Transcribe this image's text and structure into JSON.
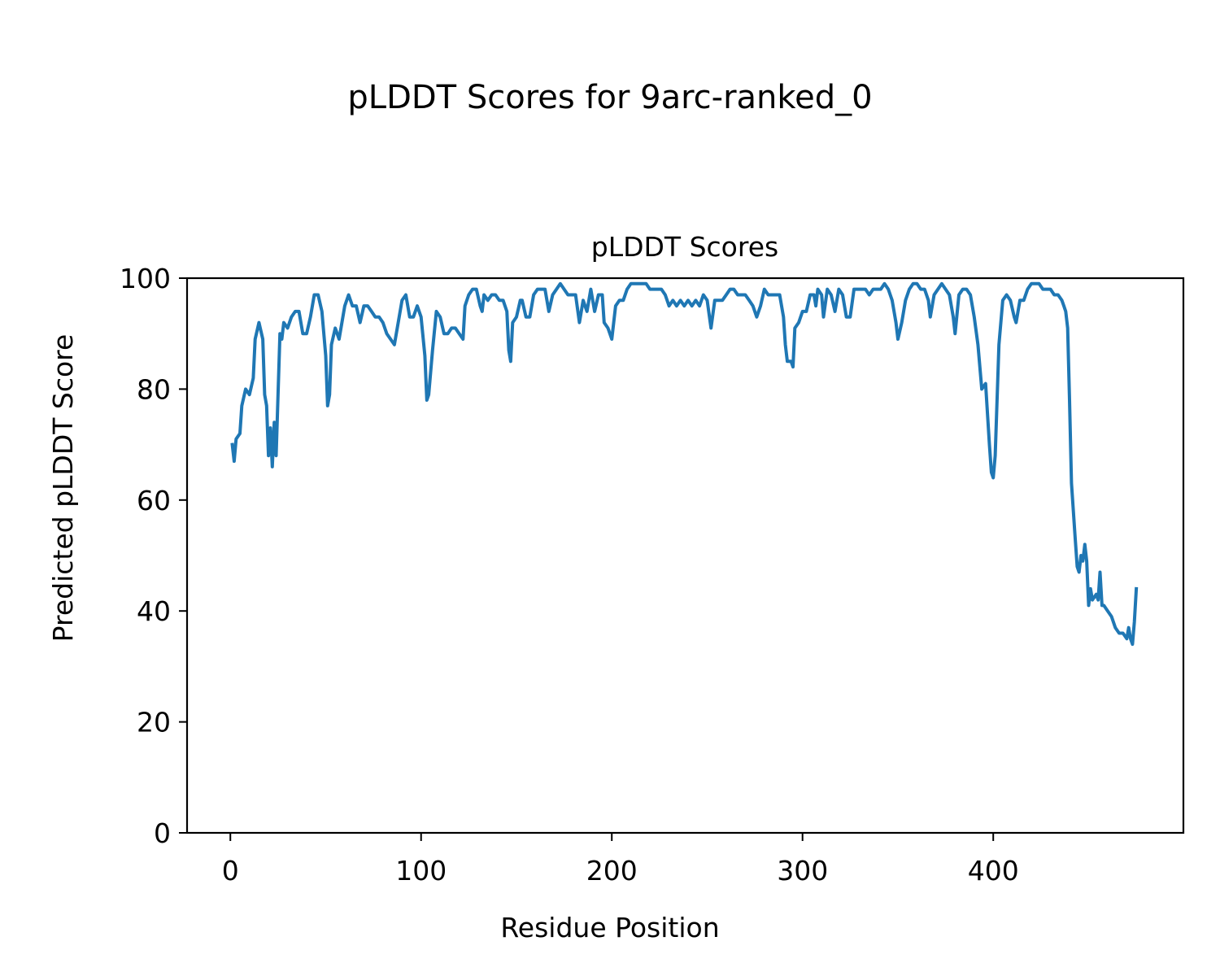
{
  "figure": {
    "suptitle": "pLDDT Scores for 9arc-ranked_0"
  },
  "chart_data": {
    "type": "line",
    "title": "pLDDT Scores",
    "xlabel": "Residue Position",
    "ylabel": "Predicted pLDDT Score",
    "xlim": [
      -22.7,
      499.7
    ],
    "ylim": [
      0,
      100
    ],
    "xticks": [
      0,
      100,
      200,
      300,
      400
    ],
    "yticks": [
      0,
      20,
      40,
      60,
      80,
      100
    ],
    "grid": false,
    "line_color": "#1f77b4",
    "anchors": [
      [
        1,
        70
      ],
      [
        2,
        67
      ],
      [
        3,
        71
      ],
      [
        5,
        72
      ],
      [
        6,
        77
      ],
      [
        8,
        80
      ],
      [
        10,
        79
      ],
      [
        12,
        82
      ],
      [
        13,
        89
      ],
      [
        15,
        92
      ],
      [
        17,
        89
      ],
      [
        18,
        79
      ],
      [
        19,
        77
      ],
      [
        20,
        68
      ],
      [
        21,
        73
      ],
      [
        22,
        66
      ],
      [
        23,
        74
      ],
      [
        24,
        68
      ],
      [
        26,
        90
      ],
      [
        27,
        89
      ],
      [
        28,
        92
      ],
      [
        30,
        91
      ],
      [
        32,
        93
      ],
      [
        34,
        94
      ],
      [
        36,
        94
      ],
      [
        38,
        90
      ],
      [
        40,
        90
      ],
      [
        42,
        93
      ],
      [
        44,
        97
      ],
      [
        46,
        97
      ],
      [
        48,
        94
      ],
      [
        50,
        86
      ],
      [
        51,
        77
      ],
      [
        52,
        79
      ],
      [
        53,
        88
      ],
      [
        55,
        91
      ],
      [
        57,
        89
      ],
      [
        60,
        95
      ],
      [
        62,
        97
      ],
      [
        64,
        95
      ],
      [
        66,
        95
      ],
      [
        68,
        92
      ],
      [
        70,
        95
      ],
      [
        72,
        95
      ],
      [
        74,
        94
      ],
      [
        76,
        93
      ],
      [
        78,
        93
      ],
      [
        80,
        92
      ],
      [
        82,
        90
      ],
      [
        84,
        89
      ],
      [
        86,
        88
      ],
      [
        88,
        92
      ],
      [
        90,
        96
      ],
      [
        92,
        97
      ],
      [
        94,
        93
      ],
      [
        96,
        93
      ],
      [
        98,
        95
      ],
      [
        100,
        93
      ],
      [
        102,
        86
      ],
      [
        103,
        78
      ],
      [
        104,
        79
      ],
      [
        106,
        87
      ],
      [
        108,
        94
      ],
      [
        110,
        93
      ],
      [
        112,
        90
      ],
      [
        114,
        90
      ],
      [
        116,
        91
      ],
      [
        118,
        91
      ],
      [
        120,
        90
      ],
      [
        122,
        89
      ],
      [
        123,
        95
      ],
      [
        125,
        97
      ],
      [
        127,
        98
      ],
      [
        129,
        98
      ],
      [
        131,
        95
      ],
      [
        132,
        94
      ],
      [
        133,
        97
      ],
      [
        135,
        96
      ],
      [
        137,
        97
      ],
      [
        139,
        97
      ],
      [
        141,
        96
      ],
      [
        143,
        96
      ],
      [
        145,
        94
      ],
      [
        146,
        87
      ],
      [
        147,
        85
      ],
      [
        148,
        92
      ],
      [
        150,
        93
      ],
      [
        152,
        96
      ],
      [
        153,
        96
      ],
      [
        155,
        93
      ],
      [
        157,
        93
      ],
      [
        159,
        97
      ],
      [
        161,
        98
      ],
      [
        163,
        98
      ],
      [
        165,
        98
      ],
      [
        167,
        94
      ],
      [
        169,
        97
      ],
      [
        171,
        98
      ],
      [
        173,
        99
      ],
      [
        175,
        98
      ],
      [
        177,
        97
      ],
      [
        179,
        97
      ],
      [
        181,
        97
      ],
      [
        183,
        92
      ],
      [
        185,
        96
      ],
      [
        187,
        94
      ],
      [
        189,
        98
      ],
      [
        191,
        94
      ],
      [
        193,
        97
      ],
      [
        195,
        97
      ],
      [
        196,
        92
      ],
      [
        198,
        91
      ],
      [
        200,
        89
      ],
      [
        202,
        95
      ],
      [
        204,
        96
      ],
      [
        206,
        96
      ],
      [
        208,
        98
      ],
      [
        210,
        99
      ],
      [
        212,
        99
      ],
      [
        214,
        99
      ],
      [
        216,
        99
      ],
      [
        218,
        99
      ],
      [
        220,
        98
      ],
      [
        222,
        98
      ],
      [
        224,
        98
      ],
      [
        226,
        98
      ],
      [
        228,
        97
      ],
      [
        230,
        95
      ],
      [
        232,
        96
      ],
      [
        234,
        95
      ],
      [
        236,
        96
      ],
      [
        238,
        95
      ],
      [
        240,
        96
      ],
      [
        242,
        95
      ],
      [
        244,
        96
      ],
      [
        246,
        95
      ],
      [
        248,
        97
      ],
      [
        250,
        96
      ],
      [
        252,
        91
      ],
      [
        254,
        96
      ],
      [
        256,
        96
      ],
      [
        258,
        96
      ],
      [
        260,
        97
      ],
      [
        262,
        98
      ],
      [
        264,
        98
      ],
      [
        266,
        97
      ],
      [
        268,
        97
      ],
      [
        270,
        97
      ],
      [
        272,
        96
      ],
      [
        274,
        95
      ],
      [
        276,
        93
      ],
      [
        278,
        95
      ],
      [
        280,
        98
      ],
      [
        282,
        97
      ],
      [
        284,
        97
      ],
      [
        286,
        97
      ],
      [
        288,
        97
      ],
      [
        290,
        93
      ],
      [
        291,
        88
      ],
      [
        292,
        85
      ],
      [
        294,
        85
      ],
      [
        295,
        84
      ],
      [
        296,
        91
      ],
      [
        298,
        92
      ],
      [
        300,
        94
      ],
      [
        302,
        94
      ],
      [
        304,
        97
      ],
      [
        306,
        97
      ],
      [
        307,
        95
      ],
      [
        308,
        98
      ],
      [
        310,
        97
      ],
      [
        311,
        93
      ],
      [
        313,
        98
      ],
      [
        315,
        97
      ],
      [
        317,
        94
      ],
      [
        319,
        98
      ],
      [
        321,
        97
      ],
      [
        323,
        93
      ],
      [
        325,
        93
      ],
      [
        327,
        98
      ],
      [
        329,
        98
      ],
      [
        331,
        98
      ],
      [
        333,
        98
      ],
      [
        335,
        97
      ],
      [
        337,
        98
      ],
      [
        339,
        98
      ],
      [
        341,
        98
      ],
      [
        343,
        99
      ],
      [
        345,
        98
      ],
      [
        347,
        96
      ],
      [
        349,
        92
      ],
      [
        350,
        89
      ],
      [
        352,
        92
      ],
      [
        354,
        96
      ],
      [
        356,
        98
      ],
      [
        358,
        99
      ],
      [
        360,
        99
      ],
      [
        362,
        98
      ],
      [
        364,
        98
      ],
      [
        366,
        96
      ],
      [
        367,
        93
      ],
      [
        369,
        97
      ],
      [
        371,
        98
      ],
      [
        373,
        99
      ],
      [
        375,
        98
      ],
      [
        377,
        97
      ],
      [
        379,
        93
      ],
      [
        380,
        90
      ],
      [
        382,
        97
      ],
      [
        384,
        98
      ],
      [
        386,
        98
      ],
      [
        388,
        97
      ],
      [
        390,
        93
      ],
      [
        392,
        88
      ],
      [
        394,
        80
      ],
      [
        396,
        81
      ],
      [
        398,
        70
      ],
      [
        399,
        65
      ],
      [
        400,
        64
      ],
      [
        401,
        68
      ],
      [
        403,
        88
      ],
      [
        405,
        96
      ],
      [
        407,
        97
      ],
      [
        409,
        96
      ],
      [
        411,
        93
      ],
      [
        412,
        92
      ],
      [
        414,
        96
      ],
      [
        416,
        96
      ],
      [
        418,
        98
      ],
      [
        420,
        99
      ],
      [
        422,
        99
      ],
      [
        424,
        99
      ],
      [
        426,
        98
      ],
      [
        428,
        98
      ],
      [
        430,
        98
      ],
      [
        432,
        97
      ],
      [
        434,
        97
      ],
      [
        436,
        96
      ],
      [
        437,
        95
      ],
      [
        438,
        94
      ],
      [
        439,
        91
      ],
      [
        440,
        78
      ],
      [
        441,
        63
      ],
      [
        442,
        58
      ],
      [
        443,
        53
      ],
      [
        444,
        48
      ],
      [
        445,
        47
      ],
      [
        446,
        50
      ],
      [
        447,
        49
      ],
      [
        448,
        52
      ],
      [
        449,
        49
      ],
      [
        450,
        41
      ],
      [
        451,
        44
      ],
      [
        452,
        42
      ],
      [
        454,
        43
      ],
      [
        455,
        42
      ],
      [
        456,
        47
      ],
      [
        457,
        41
      ],
      [
        458,
        41
      ],
      [
        460,
        40
      ],
      [
        462,
        39
      ],
      [
        464,
        37
      ],
      [
        466,
        36
      ],
      [
        468,
        36
      ],
      [
        470,
        35
      ],
      [
        471,
        37
      ],
      [
        472,
        35
      ],
      [
        473,
        34
      ],
      [
        474,
        38
      ],
      [
        475,
        44
      ]
    ]
  }
}
